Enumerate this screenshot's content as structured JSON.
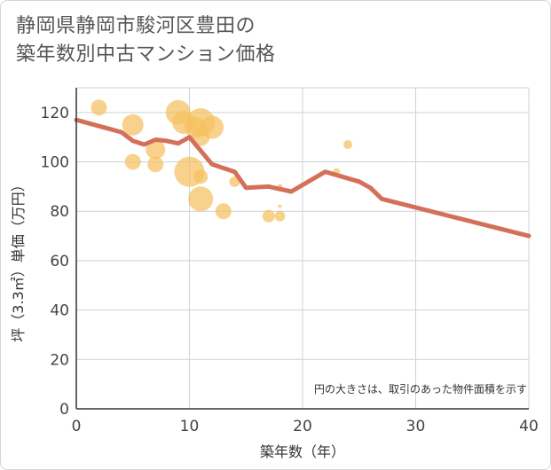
{
  "title": {
    "line1": "静岡県静岡市駿河区豊田の",
    "line2": "築年数別中古マンション価格"
  },
  "colors": {
    "trend": "#d4705a",
    "bubble": "#f5c060",
    "grid": "#c8d4dc",
    "axis": "#333333"
  },
  "chart_data": {
    "type": "scatter",
    "title": "静岡県静岡市駿河区豊田の築年数別中古マンション価格",
    "xlabel": "築年数（年）",
    "ylabel": "坪（3.3㎡）単価（万円）",
    "xlim": [
      0,
      40
    ],
    "ylim": [
      0,
      130
    ],
    "xticks": [
      0,
      10,
      20,
      30,
      40
    ],
    "yticks": [
      0,
      20,
      40,
      60,
      80,
      100,
      120
    ],
    "grid": true,
    "annotation": "円の大きさは、取引のあった物件面積を示す",
    "bubbles": [
      {
        "x": 2,
        "y": 122,
        "size": 8
      },
      {
        "x": 5,
        "y": 115,
        "size": 11
      },
      {
        "x": 5,
        "y": 100,
        "size": 8
      },
      {
        "x": 7,
        "y": 105,
        "size": 10
      },
      {
        "x": 7,
        "y": 99,
        "size": 8
      },
      {
        "x": 9,
        "y": 120,
        "size": 13
      },
      {
        "x": 9.5,
        "y": 116,
        "size": 12
      },
      {
        "x": 10,
        "y": 96,
        "size": 16
      },
      {
        "x": 10.5,
        "y": 114,
        "size": 11
      },
      {
        "x": 11,
        "y": 116,
        "size": 15
      },
      {
        "x": 11,
        "y": 110,
        "size": 9
      },
      {
        "x": 11,
        "y": 94,
        "size": 7
      },
      {
        "x": 11,
        "y": 85,
        "size": 13
      },
      {
        "x": 12,
        "y": 114,
        "size": 12
      },
      {
        "x": 13,
        "y": 80,
        "size": 8
      },
      {
        "x": 14,
        "y": 92,
        "size": 5
      },
      {
        "x": 17,
        "y": 78,
        "size": 6
      },
      {
        "x": 18,
        "y": 78,
        "size": 5
      },
      {
        "x": 18,
        "y": 90,
        "size": 2
      },
      {
        "x": 18,
        "y": 82,
        "size": 1
      },
      {
        "x": 23,
        "y": 96,
        "size": 3
      },
      {
        "x": 24,
        "y": 107,
        "size": 4
      }
    ],
    "series": [
      {
        "name": "trend",
        "x": [
          0,
          4,
          5,
          6,
          7,
          8,
          9,
          10,
          12,
          14,
          15,
          17,
          19,
          22,
          25,
          26,
          27,
          40
        ],
        "y": [
          117,
          112,
          108.5,
          107,
          109,
          108.5,
          107.5,
          110,
          99,
          96,
          89.5,
          90,
          88,
          96,
          92,
          89.5,
          85,
          70
        ]
      }
    ]
  }
}
